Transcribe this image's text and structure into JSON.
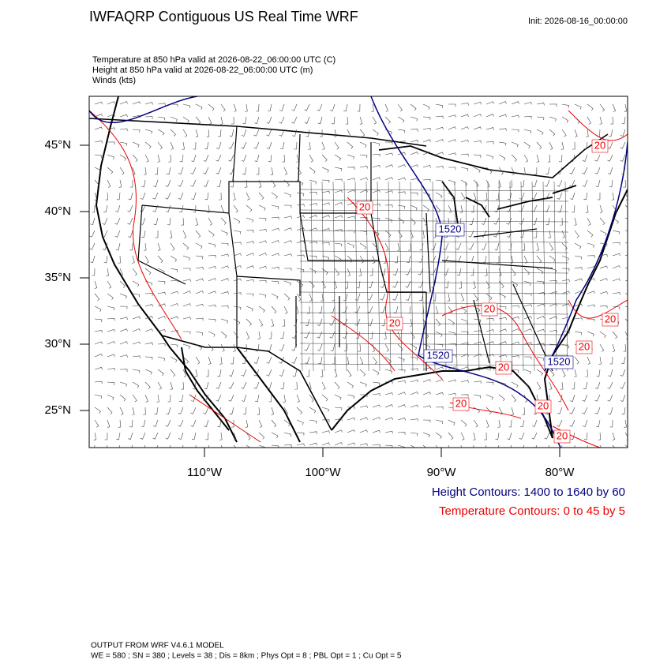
{
  "header": {
    "title": "IWFAQRP Contiguous US Real Time WRF",
    "init": "Init: 2026-08-16_00:00:00"
  },
  "fields": [
    "Temperature at 850 hPa valid at 2026-08-22_06:00:00 UTC   (C)",
    "Height at 850 hPa valid at 2026-08-22_06:00:00 UTC   (m)",
    "Winds   (kts)"
  ],
  "map": {
    "lat_labels": [
      "45°N",
      "40°N",
      "35°N",
      "30°N",
      "25°N"
    ],
    "lon_labels": [
      "110°W",
      "100°W",
      "90°W",
      "80°W"
    ],
    "height_contour_labels": [
      "1520",
      "1520",
      "1520"
    ],
    "temperature_contour_labels": [
      "20",
      "20",
      "20",
      "20",
      "20",
      "20",
      "20",
      "20",
      "20",
      "20"
    ]
  },
  "legend": [
    "Height Contours: 1400 to 1640 by 60",
    "Temperature Contours: 0 to 45 by 5"
  ],
  "footer": [
    "OUTPUT FROM WRF V4.6.1 MODEL",
    "WE = 580 ; SN = 380 ; Levels = 38 ; Dis = 8km ; Phys Opt = 8 ; PBL Opt = 1 ; Cu Opt = 5"
  ]
}
